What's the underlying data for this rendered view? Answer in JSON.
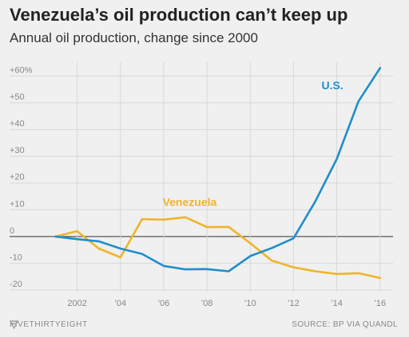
{
  "header": {
    "title": "Venezuela’s oil production can’t keep up",
    "subtitle": "Annual oil production, change since 2000"
  },
  "footer": {
    "brand": "FIVETHIRTYEIGHT",
    "source": "SOURCE: BP VIA QUANDL"
  },
  "chart_data": {
    "type": "line",
    "title": "Venezuela’s oil production can’t keep up",
    "subtitle": "Annual oil production, change since 2000",
    "x": [
      2001,
      2002,
      2003,
      2004,
      2005,
      2006,
      2007,
      2008,
      2009,
      2010,
      2011,
      2012,
      2013,
      2014,
      2015,
      2016
    ],
    "x_ticks": [
      2002,
      2004,
      2006,
      2008,
      2010,
      2012,
      2014,
      2016
    ],
    "x_tick_labels": [
      "2002",
      "’04",
      "’06",
      "’08",
      "’10",
      "’12",
      "’14",
      "’16"
    ],
    "xlim": [
      2000.5,
      2016.6
    ],
    "ylim": [
      -20,
      64
    ],
    "y_ticks": [
      -20,
      -10,
      0,
      10,
      20,
      30,
      40,
      50,
      60
    ],
    "y_tick_labels": [
      "-20",
      "-10",
      "0",
      "+10",
      "+20",
      "+30",
      "+40",
      "+50",
      "+60%"
    ],
    "grid": true,
    "series": [
      {
        "name": "Venezuela",
        "color": "#f0b429",
        "values": [
          0,
          2,
          -4.5,
          -7.8,
          6.5,
          6.3,
          7.2,
          3.5,
          3.6,
          -2.5,
          -9,
          -11.5,
          -13,
          -14,
          -13.7,
          -15.5
        ]
      },
      {
        "name": "U.S.",
        "color": "#1f8ecb",
        "values": [
          0,
          -1,
          -1.8,
          -4.5,
          -6.5,
          -11,
          -12.3,
          -12.2,
          -13,
          -7.3,
          -4.3,
          -0.7,
          13,
          29,
          50.5,
          63
        ]
      }
    ]
  }
}
